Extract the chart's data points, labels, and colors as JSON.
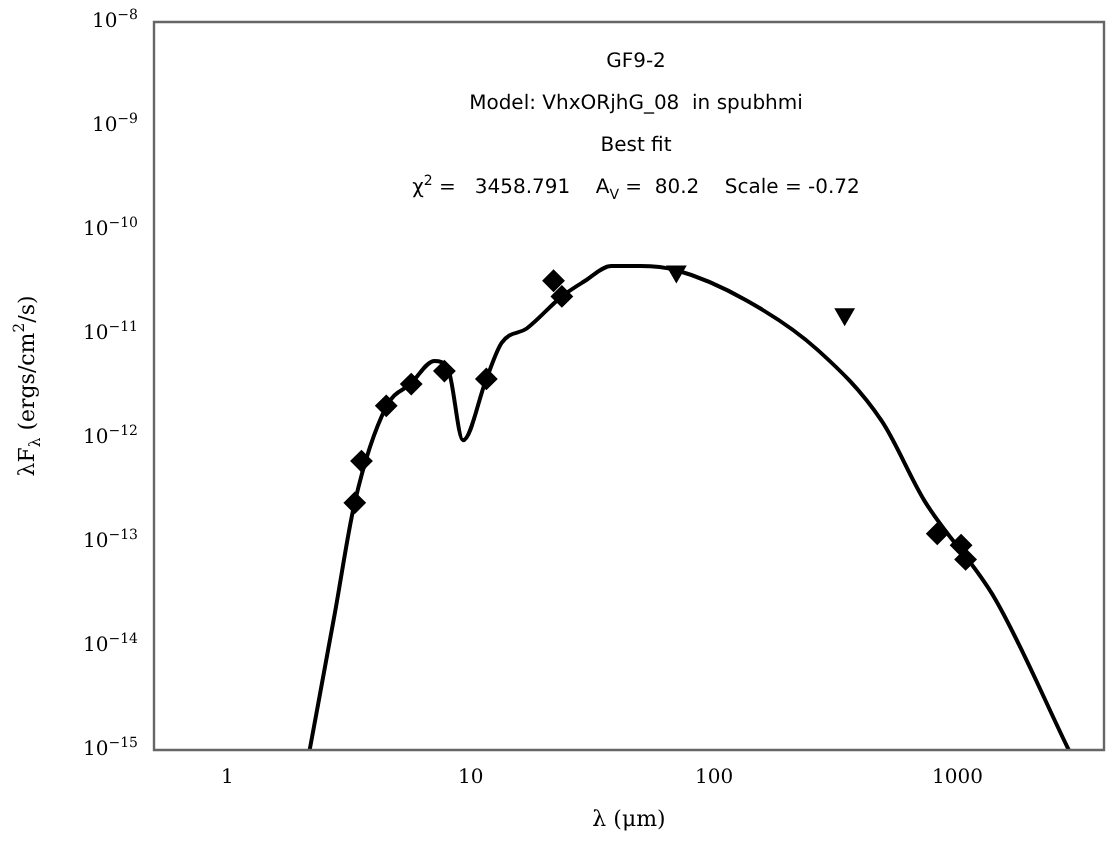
{
  "chart_data": {
    "type": "scatter",
    "log": "xy",
    "xlabel": "λ (μm)",
    "ylabel": "λF$_{λ}$ (ergs/cm$^{2}$/s)",
    "annotations": [
      "GF9-2",
      "Model: VhxORjhG_08  in spubhmi",
      "Best fit",
      "χ$^{2}$ =   3458.791    A$_{V}$ =  80.2    Scale = -0.72"
    ],
    "xlim": [
      0.5,
      4000
    ],
    "xticks": [
      1,
      10,
      100,
      1000
    ],
    "ylim": [
      1e-15,
      1e-08
    ],
    "yticks": [
      {
        "value": 1e-15,
        "label": "10$^{−15}$"
      },
      {
        "value": 1e-14,
        "label": "10$^{−14}$"
      },
      {
        "value": 1e-13,
        "label": "10$^{−13}$"
      },
      {
        "value": 1e-12,
        "label": "10$^{−12}$"
      },
      {
        "value": 1e-11,
        "label": "10$^{−11}$"
      },
      {
        "value": 1e-10,
        "label": "10$^{−10}$"
      },
      {
        "value": 1e-09,
        "label": "10$^{−9}$"
      },
      {
        "value": 1e-08,
        "label": "10$^{−8}$"
      }
    ],
    "grid": false,
    "legend": false,
    "series": [
      {
        "type": "line",
        "color": "#000000",
        "marker": "none",
        "line_style": "solid",
        "x": [
          2.18,
          2.76,
          3.34,
          4.5,
          5.66,
          7.1,
          8.1,
          9.3,
          11.6,
          13.4,
          17,
          23.7,
          29,
          37.9,
          49.7,
          70,
          136,
          267,
          489,
          731,
          1432,
          2866
        ],
        "values": [
          1e-15,
          2e-14,
          2.4e-13,
          2e-12,
          3.3e-12,
          5.5e-12,
          4.5e-12,
          9.5e-13,
          3.7e-12,
          8.2e-12,
          1.13e-11,
          2.3e-11,
          3.16e-11,
          4.5e-11,
          4.5e-11,
          4.1e-11,
          2.1e-11,
          7e-12,
          1.45e-12,
          2.5e-13,
          2.8e-14,
          1e-15
        ]
      },
      {
        "color": "#000000",
        "marker": "diamond",
        "x": [
          3.34,
          3.56,
          4.5,
          5.7,
          7.8,
          11.6,
          21.9,
          23.7,
          826,
          1035,
          1080
        ],
        "values": [
          2.38e-13,
          6e-13,
          2.04e-12,
          3.3e-12,
          4.4e-12,
          3.7e-12,
          3.25e-11,
          2.3e-11,
          1.2e-13,
          9.3e-14,
          6.8e-14
        ]
      },
      {
        "color": "#000000",
        "marker": "triangle",
        "x": [
          70,
          344
        ],
        "values": [
          4e-11,
          1.55e-11
        ]
      }
    ]
  }
}
